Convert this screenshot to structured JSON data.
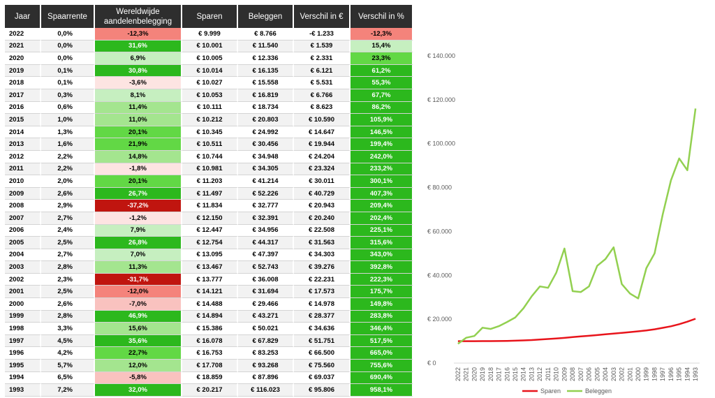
{
  "table": {
    "headers": [
      "Jaar",
      "Spaarrente",
      "Wereldwijde aandelenbelegging",
      "Sparen",
      "Beleggen",
      "Verschil in €",
      "Verschil in %"
    ],
    "rows": [
      [
        "2022",
        "0,0%",
        "-12,3%",
        "€ 9.999",
        "€ 8.766",
        "-€ 1.233",
        "-12,3%"
      ],
      [
        "2021",
        "0,0%",
        "31,6%",
        "€ 10.001",
        "€ 11.540",
        "€ 1.539",
        "15,4%"
      ],
      [
        "2020",
        "0,0%",
        "6,9%",
        "€ 10.005",
        "€ 12.336",
        "€ 2.331",
        "23,3%"
      ],
      [
        "2019",
        "0,1%",
        "30,8%",
        "€ 10.014",
        "€ 16.135",
        "€ 6.121",
        "61,2%"
      ],
      [
        "2018",
        "0,1%",
        "-3,6%",
        "€ 10.027",
        "€ 15.558",
        "€ 5.531",
        "55,3%"
      ],
      [
        "2017",
        "0,3%",
        "8,1%",
        "€ 10.053",
        "€ 16.819",
        "€ 6.766",
        "67,7%"
      ],
      [
        "2016",
        "0,6%",
        "11,4%",
        "€ 10.111",
        "€ 18.734",
        "€ 8.623",
        "86,2%"
      ],
      [
        "2015",
        "1,0%",
        "11,0%",
        "€ 10.212",
        "€ 20.803",
        "€ 10.590",
        "105,9%"
      ],
      [
        "2014",
        "1,3%",
        "20,1%",
        "€ 10.345",
        "€ 24.992",
        "€ 14.647",
        "146,5%"
      ],
      [
        "2013",
        "1,6%",
        "21,9%",
        "€ 10.511",
        "€ 30.456",
        "€ 19.944",
        "199,4%"
      ],
      [
        "2012",
        "2,2%",
        "14,8%",
        "€ 10.744",
        "€ 34.948",
        "€ 24.204",
        "242,0%"
      ],
      [
        "2011",
        "2,2%",
        "-1,8%",
        "€ 10.981",
        "€ 34.305",
        "€ 23.324",
        "233,2%"
      ],
      [
        "2010",
        "2,0%",
        "20,1%",
        "€ 11.203",
        "€ 41.214",
        "€ 30.011",
        "300,1%"
      ],
      [
        "2009",
        "2,6%",
        "26,7%",
        "€ 11.497",
        "€ 52.226",
        "€ 40.729",
        "407,3%"
      ],
      [
        "2008",
        "2,9%",
        "-37,2%",
        "€ 11.834",
        "€ 32.777",
        "€ 20.943",
        "209,4%"
      ],
      [
        "2007",
        "2,7%",
        "-1,2%",
        "€ 12.150",
        "€ 32.391",
        "€ 20.240",
        "202,4%"
      ],
      [
        "2006",
        "2,4%",
        "7,9%",
        "€ 12.447",
        "€ 34.956",
        "€ 22.508",
        "225,1%"
      ],
      [
        "2005",
        "2,5%",
        "26,8%",
        "€ 12.754",
        "€ 44.317",
        "€ 31.563",
        "315,6%"
      ],
      [
        "2004",
        "2,7%",
        "7,0%",
        "€ 13.095",
        "€ 47.397",
        "€ 34.303",
        "343,0%"
      ],
      [
        "2003",
        "2,8%",
        "11,3%",
        "€ 13.467",
        "€ 52.743",
        "€ 39.276",
        "392,8%"
      ],
      [
        "2002",
        "2,3%",
        "-31,7%",
        "€ 13.777",
        "€ 36.008",
        "€ 22.231",
        "222,3%"
      ],
      [
        "2001",
        "2,5%",
        "-12,0%",
        "€ 14.121",
        "€ 31.694",
        "€ 17.573",
        "175,7%"
      ],
      [
        "2000",
        "2,6%",
        "-7,0%",
        "€ 14.488",
        "€ 29.466",
        "€ 14.978",
        "149,8%"
      ],
      [
        "1999",
        "2,8%",
        "46,9%",
        "€ 14.894",
        "€ 43.271",
        "€ 28.377",
        "283,8%"
      ],
      [
        "1998",
        "3,3%",
        "15,6%",
        "€ 15.386",
        "€ 50.021",
        "€ 34.636",
        "346,4%"
      ],
      [
        "1997",
        "4,5%",
        "35,6%",
        "€ 16.078",
        "€ 67.829",
        "€ 51.751",
        "517,5%"
      ],
      [
        "1996",
        "4,2%",
        "22,7%",
        "€ 16.753",
        "€ 83.253",
        "€ 66.500",
        "665,0%"
      ],
      [
        "1995",
        "5,7%",
        "12,0%",
        "€ 17.708",
        "€ 93.268",
        "€ 75.560",
        "755,6%"
      ],
      [
        "1994",
        "6,5%",
        "-5,8%",
        "€ 18.859",
        "€ 87.896",
        "€ 69.037",
        "690,4%"
      ],
      [
        "1993",
        "7,2%",
        "32,0%",
        "€ 20.217",
        "€ 116.023",
        "€ 95.806",
        "958,1%"
      ]
    ],
    "colors": {
      "header_bg": "#2e2e2e",
      "dark_red": "#c0150f",
      "salmon": "#f4837b",
      "light_pink": "#f9c2bf",
      "very_light_pink": "#fde4e2",
      "pale_green": "#c6efc0",
      "light_green": "#a4e58f",
      "mid_green": "#62d845",
      "strong_green": "#2cb81d"
    }
  },
  "chart_data": {
    "type": "line",
    "categories": [
      "2022",
      "2021",
      "2020",
      "2019",
      "2018",
      "2017",
      "2016",
      "2015",
      "2014",
      "2013",
      "2012",
      "2011",
      "2010",
      "2009",
      "2008",
      "2007",
      "2006",
      "2005",
      "2004",
      "2003",
      "2002",
      "2001",
      "2000",
      "1999",
      "1998",
      "1997",
      "1996",
      "1995",
      "1994",
      "1993"
    ],
    "series": [
      {
        "name": "Sparen",
        "color": "#e8141b",
        "values": [
          9999,
          10001,
          10005,
          10014,
          10027,
          10053,
          10111,
          10212,
          10345,
          10511,
          10744,
          10981,
          11203,
          11497,
          11834,
          12150,
          12447,
          12754,
          13095,
          13467,
          13777,
          14121,
          14488,
          14894,
          15386,
          16078,
          16753,
          17708,
          18859,
          20217
        ]
      },
      {
        "name": "Beleggen",
        "color": "#92d050",
        "values": [
          8766,
          11540,
          12336,
          16135,
          15558,
          16819,
          18734,
          20803,
          24992,
          30456,
          34948,
          34305,
          41214,
          52226,
          32777,
          32391,
          34956,
          44317,
          47397,
          52743,
          36008,
          31694,
          29466,
          43271,
          50021,
          67829,
          83253,
          93268,
          87896,
          116023
        ]
      }
    ],
    "ylim": [
      0,
      140000
    ],
    "yticks": [
      "€ 0",
      "€ 20.000",
      "€ 40.000",
      "€ 60.000",
      "€ 80.000",
      "€ 100.000",
      "€ 120.000",
      "€ 140.000"
    ],
    "grid": false,
    "legend_position": "bottom"
  }
}
